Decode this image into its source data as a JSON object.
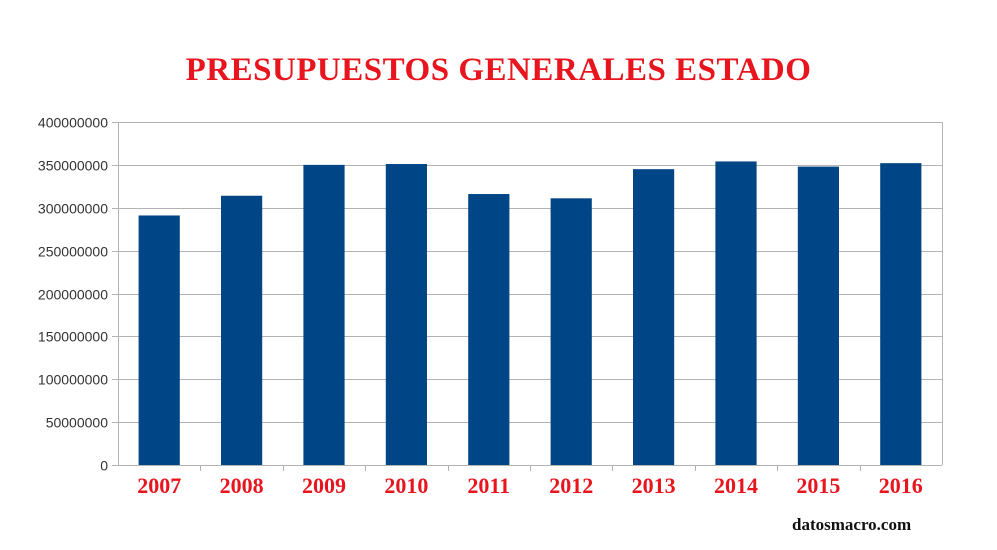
{
  "chart_data": {
    "type": "bar",
    "title": "PRESUPUESTOS GENERALES ESTADO",
    "categories": [
      "2007",
      "2008",
      "2009",
      "2010",
      "2011",
      "2012",
      "2013",
      "2014",
      "2015",
      "2016"
    ],
    "values": [
      291000000,
      314000000,
      350000000,
      351000000,
      316000000,
      311000000,
      345000000,
      354000000,
      348000000,
      352000000
    ],
    "yticks": [
      0,
      50000000,
      100000000,
      150000000,
      200000000,
      250000000,
      300000000,
      350000000,
      400000000
    ],
    "ylim": [
      0,
      400000000
    ],
    "xlabel": "",
    "ylabel": "",
    "grid": true,
    "colors": {
      "bar": "#004586",
      "title": "#e8141e",
      "category_label": "#e8141e",
      "grid": "#b3b3b3",
      "axis_text": "#333333"
    }
  },
  "watermark": "datosmacro.com"
}
